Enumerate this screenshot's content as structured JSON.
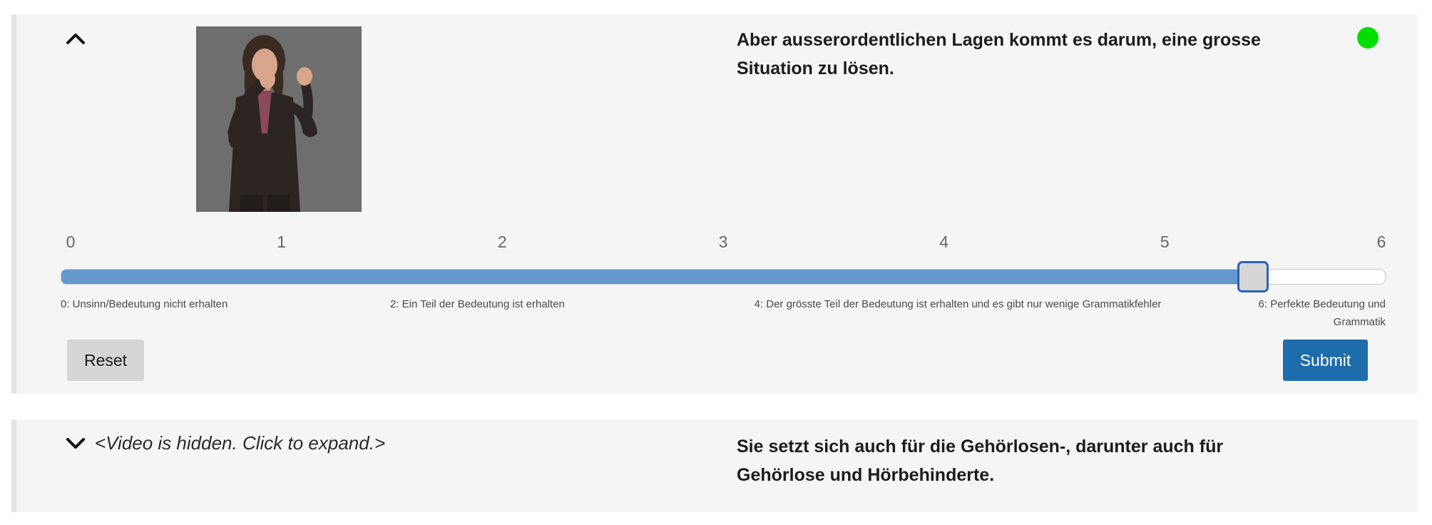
{
  "items": [
    {
      "expanded": true,
      "toggle_icon": "chevron-up-icon",
      "sentence": "Aber ausserordentlichen Lagen kommt es darum, eine grosse Situation zu lösen.",
      "status_color": "#00e000",
      "rating": {
        "min": 0,
        "max": 6,
        "value": 5.4,
        "ticks": [
          "0",
          "1",
          "2",
          "3",
          "4",
          "5",
          "6"
        ],
        "descriptions": [
          "0: Unsinn/Bedeutung nicht erhalten",
          "2: Ein Teil der Bedeutung ist erhalten",
          "4: Der grösste Teil der Bedeutung ist erhalten und es gibt nur wenige Grammatikfehler",
          "6: Perfekte Bedeutung und Grammatik"
        ]
      },
      "buttons": {
        "reset_label": "Reset",
        "submit_label": "Submit"
      }
    },
    {
      "expanded": false,
      "toggle_icon": "chevron-down-icon",
      "hidden_note": "<Video is hidden. Click to expand.>",
      "sentence": "Sie setzt sich auch für die Gehörlosen-, darunter auch für Gehörlose und Hörbehinderte."
    }
  ],
  "colors": {
    "slider_fill": "#6497cb",
    "handle_border": "#2a63b7",
    "submit_bg": "#1f6cac",
    "reset_bg": "#d6d6d6"
  }
}
